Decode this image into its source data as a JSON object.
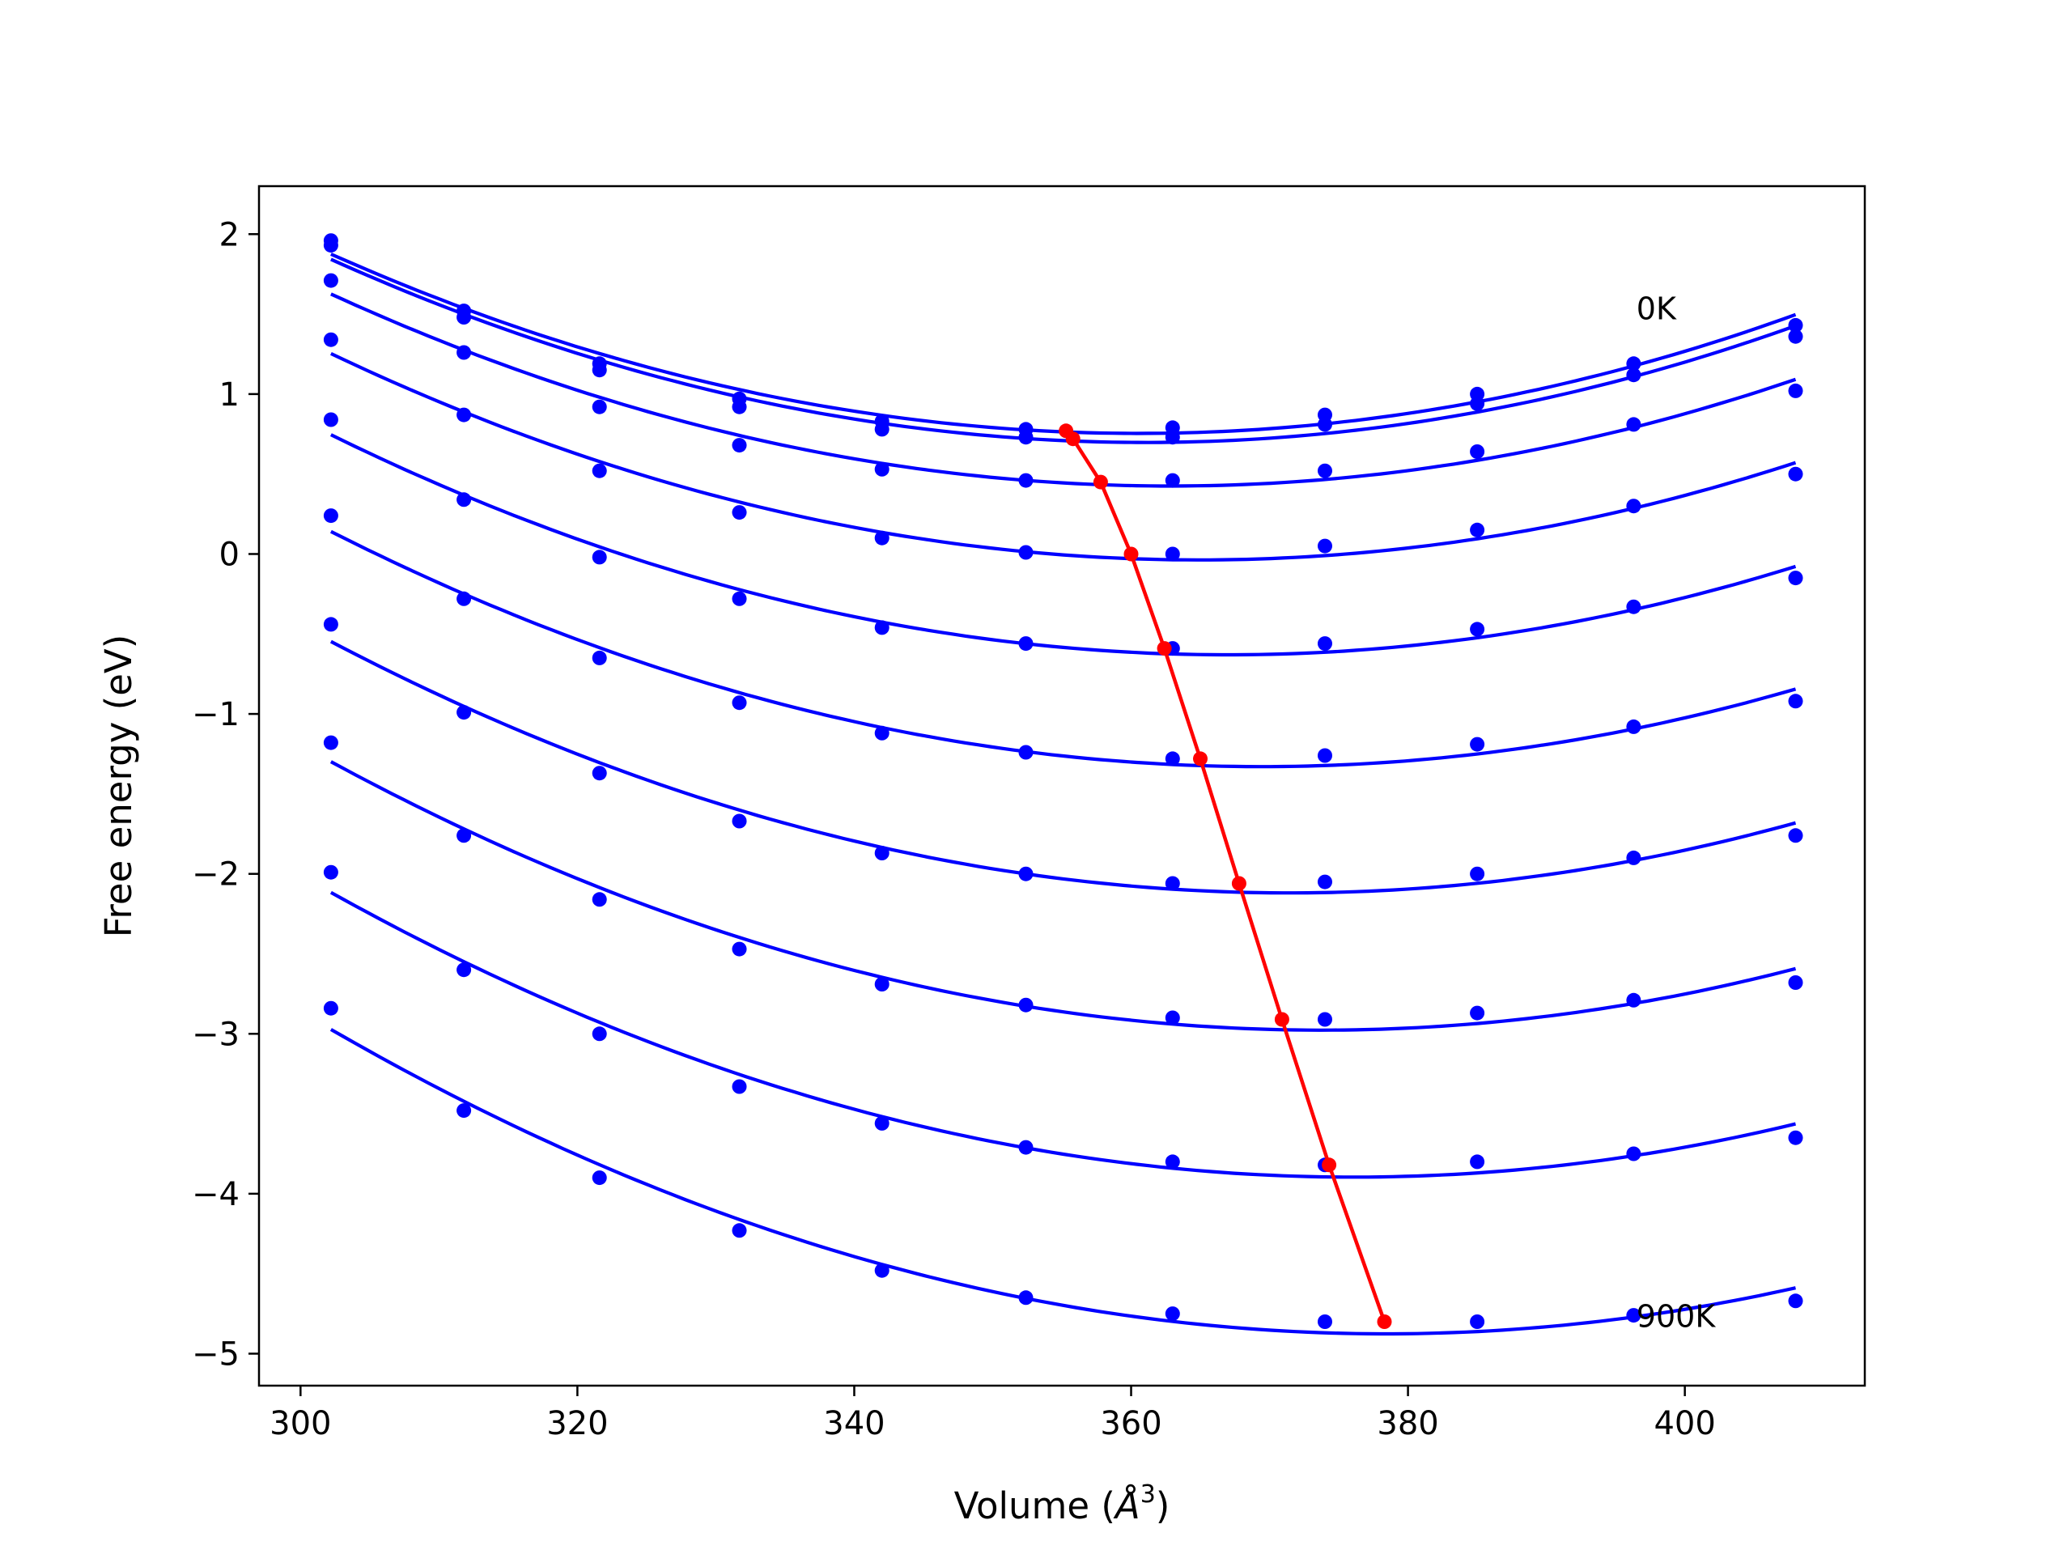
{
  "chart_data": {
    "type": "line",
    "title": "",
    "xlabel_prefix": "Volume (",
    "xlabel_var": "Å",
    "xlabel_exp": "3",
    "xlabel_suffix": ")",
    "ylabel": "Free energy (eV)",
    "xlim": [
      297,
      413
    ],
    "ylim": [
      -5.2,
      2.3
    ],
    "xticks": [
      300,
      320,
      340,
      360,
      380,
      400
    ],
    "yticks": [
      -5,
      -4,
      -3,
      -2,
      -1,
      0,
      1,
      2
    ],
    "ytick_labels": [
      "−5",
      "−4",
      "−3",
      "−2",
      "−1",
      "0",
      "1",
      "2"
    ],
    "grid": false,
    "colors": {
      "curves": "#0000ff",
      "minima": "#ff0000",
      "frame": "#000000"
    },
    "x": [
      302.2,
      311.8,
      321.6,
      331.7,
      342.0,
      352.4,
      363.0,
      374.0,
      385.0,
      396.3,
      408.0
    ],
    "series": [
      {
        "values": [
          1.96,
          1.52,
          1.19,
          0.97,
          0.83,
          0.78,
          0.79,
          0.87,
          1.0,
          1.19,
          1.43
        ]
      },
      {
        "values": [
          1.93,
          1.48,
          1.15,
          0.92,
          0.78,
          0.73,
          0.73,
          0.81,
          0.94,
          1.12,
          1.36
        ]
      },
      {
        "values": [
          1.71,
          1.26,
          0.92,
          0.68,
          0.53,
          0.46,
          0.46,
          0.52,
          0.64,
          0.81,
          1.02
        ]
      },
      {
        "values": [
          1.34,
          0.87,
          0.52,
          0.26,
          0.1,
          0.01,
          0.0,
          0.05,
          0.15,
          0.3,
          0.5
        ]
      },
      {
        "values": [
          0.84,
          0.34,
          -0.02,
          -0.28,
          -0.46,
          -0.56,
          -0.59,
          -0.56,
          -0.47,
          -0.33,
          -0.15
        ]
      },
      {
        "values": [
          0.24,
          -0.28,
          -0.65,
          -0.93,
          -1.12,
          -1.24,
          -1.28,
          -1.26,
          -1.19,
          -1.08,
          -0.92
        ]
      },
      {
        "values": [
          -0.44,
          -0.99,
          -1.37,
          -1.67,
          -1.87,
          -2.0,
          -2.06,
          -2.05,
          -2.0,
          -1.9,
          -1.76
        ]
      },
      {
        "values": [
          -1.18,
          -1.76,
          -2.16,
          -2.47,
          -2.69,
          -2.82,
          -2.9,
          -2.91,
          -2.87,
          -2.79,
          -2.68
        ]
      },
      {
        "values": [
          -1.99,
          -2.6,
          -3.0,
          -3.33,
          -3.56,
          -3.71,
          -3.8,
          -3.82,
          -3.8,
          -3.75,
          -3.65
        ]
      },
      {
        "values": [
          -2.84,
          -3.48,
          -3.9,
          -4.23,
          -4.48,
          -4.65,
          -4.75,
          -4.8,
          -4.8,
          -4.76,
          -4.67
        ]
      }
    ],
    "minima": {
      "x": [
        355.3,
        355.8,
        357.8,
        360.0,
        362.4,
        365.0,
        367.8,
        370.9,
        374.3,
        378.3
      ],
      "y": [
        0.77,
        0.72,
        0.45,
        0.0,
        -0.59,
        -1.28,
        -2.06,
        -2.91,
        -3.82,
        -4.8
      ]
    },
    "annotations": [
      {
        "text": "0K",
        "x": 396.5,
        "y": 1.52
      },
      {
        "text": "900K",
        "x": 396.5,
        "y": -4.78
      }
    ]
  }
}
